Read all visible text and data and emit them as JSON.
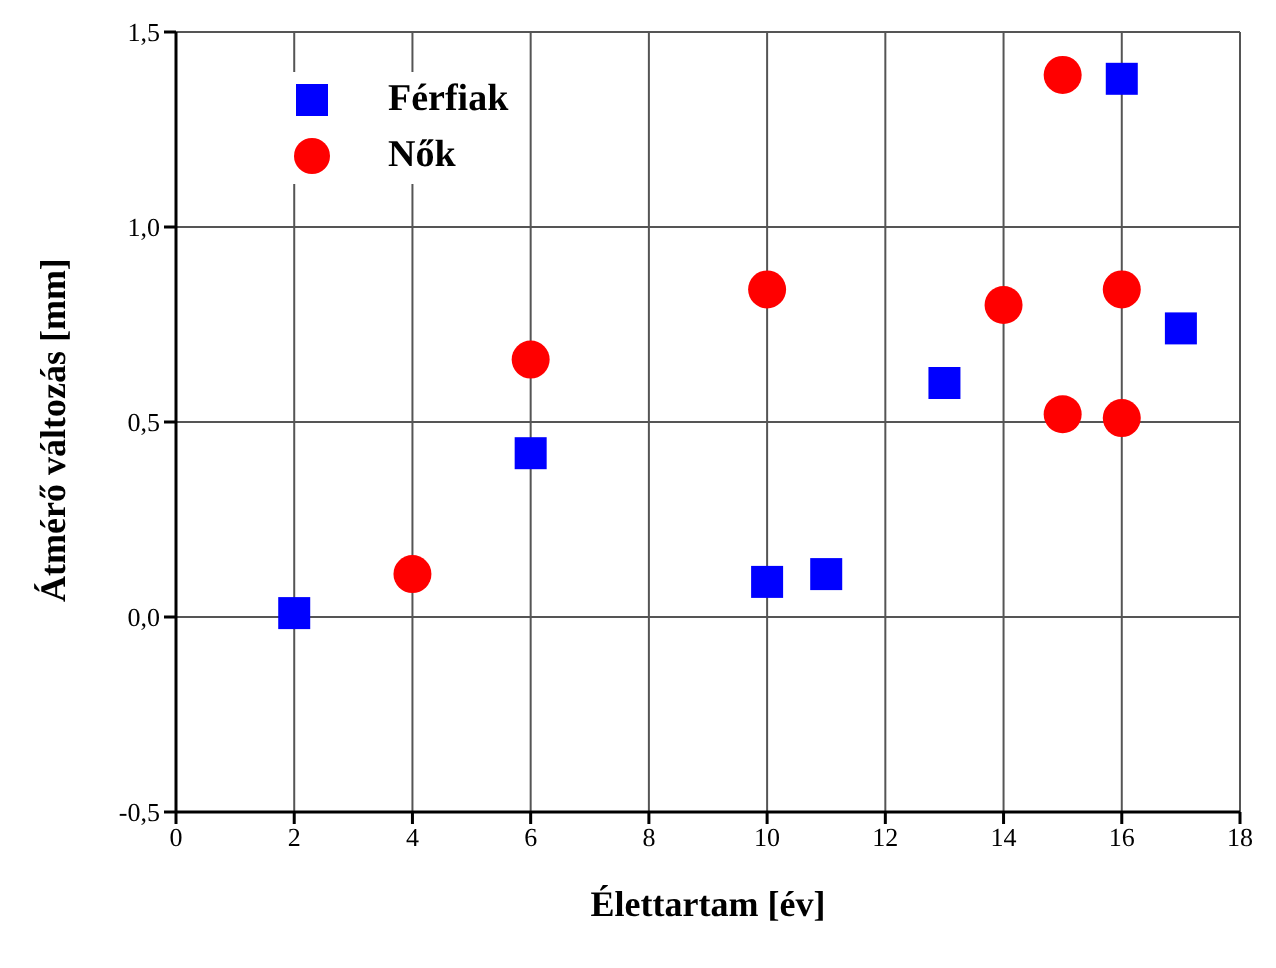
{
  "chart_data": {
    "type": "scatter",
    "xlabel": "Élettartam [év]",
    "ylabel": "Átmérő változás [mm]",
    "series": [
      {
        "name": "Férfiak",
        "color": "#0000ff",
        "marker": "square",
        "x": [
          2,
          6,
          10,
          11,
          13,
          16,
          17
        ],
        "values": [
          0.01,
          0.42,
          0.09,
          0.11,
          0.6,
          1.38,
          0.74
        ]
      },
      {
        "name": "Nők",
        "color": "#ff0000",
        "marker": "circle",
        "x": [
          4,
          6,
          10,
          14,
          15,
          15,
          16,
          16
        ],
        "values": [
          0.11,
          0.66,
          0.84,
          0.8,
          1.39,
          0.52,
          0.84,
          0.51
        ]
      }
    ],
    "xlim": [
      0,
      18
    ],
    "xticks": [
      0,
      2,
      4,
      6,
      8,
      10,
      12,
      14,
      16,
      18
    ],
    "ylim": [
      -0.5,
      1.5
    ],
    "yticks": [
      {
        "value": -0.5,
        "label": "-0,5"
      },
      {
        "value": 0,
        "label": "0,0"
      },
      {
        "value": 0.5,
        "label": "0,5"
      },
      {
        "value": 1,
        "label": "1,0"
      },
      {
        "value": 1.5,
        "label": "1,5"
      }
    ],
    "grid": true,
    "legend": "top left"
  }
}
